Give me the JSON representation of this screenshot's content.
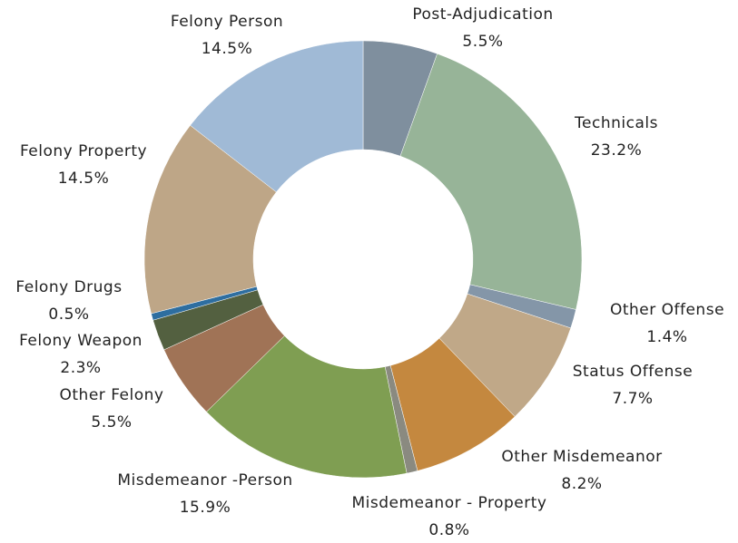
{
  "chart_data": {
    "type": "pie",
    "donut": true,
    "categories": [
      "Post-Adjudication",
      "Technicals",
      "Other Offense",
      "Status Offense",
      "Other Misdemeanor",
      "Misdemeanor - Property",
      "Misdemeanor -Person",
      "Other Felony",
      "Felony Weapon",
      "Felony Drugs",
      "Felony Property",
      "Felony Person"
    ],
    "values": [
      5.5,
      23.2,
      1.4,
      7.7,
      8.2,
      0.8,
      15.9,
      5.5,
      2.3,
      0.5,
      14.5,
      14.5
    ],
    "value_labels": [
      "5.5%",
      "23.2%",
      "1.4%",
      "7.7%",
      "8.2%",
      "0.8%",
      "15.9%",
      "5.5%",
      "2.3%",
      "0.5%",
      "14.5%",
      "14.5%"
    ],
    "colors": [
      "#7f8f9e",
      "#97b498",
      "#8496a8",
      "#c0a888",
      "#c4883f",
      "#8a8a80",
      "#7f9e52",
      "#a07356",
      "#536040",
      "#2e6ea0",
      "#bea687",
      "#a0bad6"
    ]
  }
}
